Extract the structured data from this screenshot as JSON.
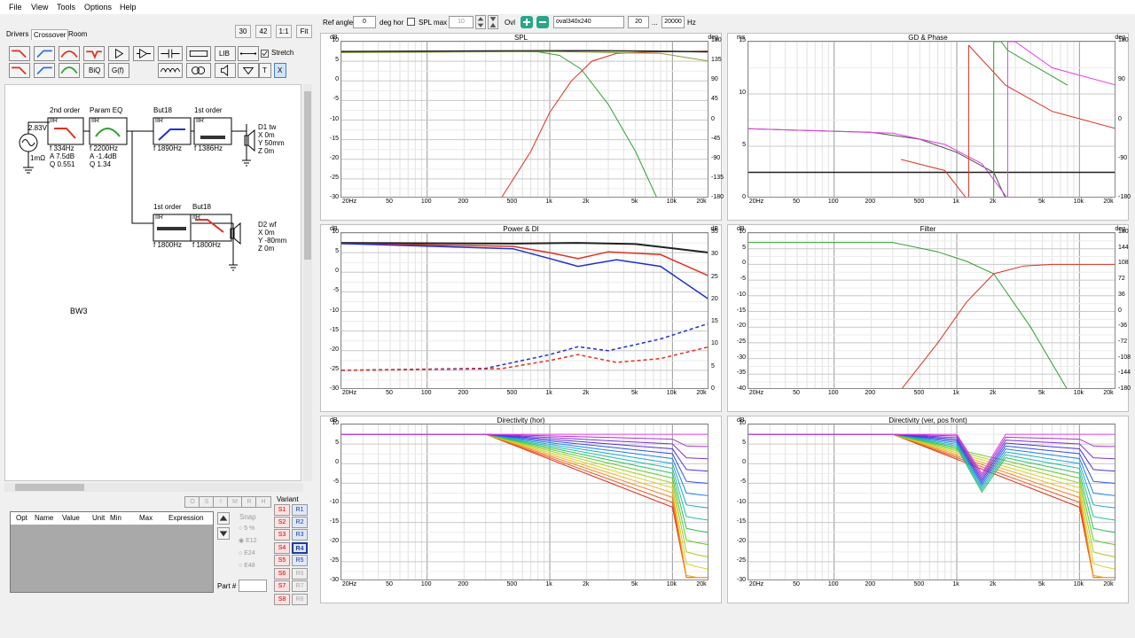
{
  "menu": [
    "File",
    "View",
    "Tools",
    "Options",
    "Help"
  ],
  "tabs": [
    "Drivers",
    "Crossover",
    "Room"
  ],
  "topbtns": [
    "30",
    "42",
    "1:1",
    "Fit"
  ],
  "toolbar": {
    "lib": "LIB",
    "biq": "BiQ",
    "gf": "G(f)",
    "t": "T",
    "x": "X",
    "stretch": "Stretch"
  },
  "schematic": {
    "source_v": "2.83V",
    "source_r": "1mΩ",
    "project": "BW3",
    "blocks": [
      {
        "title": "2nd order",
        "kind": "IIR",
        "params": [
          "f   334Hz",
          "A  7.5dB",
          "Q  0.551"
        ]
      },
      {
        "title": "Param EQ",
        "kind": "IIR",
        "params": [
          "f   2200Hz",
          "A  -1.4dB",
          "Q  1.34"
        ]
      },
      {
        "title": "But18",
        "kind": "IIR",
        "params": [
          "f   1890Hz"
        ]
      },
      {
        "title": "1st order",
        "kind": "IIR",
        "params": [
          "f   1386Hz"
        ]
      },
      {
        "title": "1st order",
        "kind": "IIR",
        "params": [
          "f   1800Hz"
        ]
      },
      {
        "title": "But18",
        "kind": "IIR",
        "params": [
          "f   1800Hz"
        ]
      }
    ],
    "drivers": [
      {
        "name": "D1 tw",
        "x": "X  0m",
        "y": "Y  50mm",
        "z": "Z  0m"
      },
      {
        "name": "D2 wf",
        "x": "X  0m",
        "y": "Y  -80mm",
        "z": "Z  0m"
      }
    ]
  },
  "params": {
    "headers": [
      "Opt",
      "Name",
      "Value",
      "Unit",
      "Min",
      "Max",
      "Expression"
    ],
    "letters": [
      "O",
      "S",
      "I",
      "M",
      "R",
      "H"
    ],
    "snap": "Snap",
    "snap_opts": [
      "5 %",
      "E12",
      "E24",
      "E48"
    ],
    "part": "Part #"
  },
  "variants": {
    "label": "Variant",
    "s": [
      "S1",
      "S2",
      "S3",
      "S4",
      "S5",
      "S6",
      "S7",
      "S8"
    ],
    "r": [
      "R1",
      "R2",
      "R3",
      "R4",
      "R5",
      "R6",
      "R7",
      "R8"
    ]
  },
  "topbar": {
    "ref_angle_label": "Ref angle",
    "ref_angle": "0",
    "deg_hor": "deg hor",
    "spl_max": "SPL max",
    "spl_max_val": "10",
    "ovl": "Ovl",
    "ovl_name": "oval340x240",
    "fmin": "20",
    "dots": "...",
    "fmax": "20000",
    "hz": "Hz"
  },
  "x_ticks": [
    "20Hz",
    "50",
    "100",
    "200",
    "500",
    "1k",
    "2k",
    "5k",
    "10k",
    "20k"
  ],
  "charts": {
    "spl": {
      "title": "SPL",
      "lunit": "dB",
      "runit": "deg",
      "left": [
        "10",
        "5",
        "0",
        "-5",
        "-10",
        "-15",
        "-20",
        "-25",
        "-30"
      ],
      "right": [
        "180",
        "135",
        "90",
        "45",
        "0",
        "-45",
        "-90",
        "-135",
        "-180"
      ]
    },
    "gd": {
      "title": "GD & Phase",
      "lunit": "ms",
      "runit": "deg",
      "left": [
        "15",
        "10",
        "5",
        "0"
      ],
      "right": [
        "180",
        "90",
        "0",
        "-90",
        "-180"
      ]
    },
    "power": {
      "title": "Power & DI",
      "lunit": "dB",
      "runit": "dB",
      "left": [
        "10",
        "5",
        "0",
        "-5",
        "-10",
        "-15",
        "-20",
        "-25",
        "-30"
      ],
      "right": [
        "35",
        "30",
        "25",
        "20",
        "15",
        "10",
        "5",
        "0"
      ]
    },
    "filter": {
      "title": "Filter",
      "lunit": "dB",
      "runit": "deg",
      "left": [
        "10",
        "5",
        "0",
        "-5",
        "-10",
        "-15",
        "-20",
        "-25",
        "-30",
        "-35",
        "-40"
      ],
      "right": [
        "180",
        "144",
        "108",
        "72",
        "36",
        "0",
        "-36",
        "-72",
        "-108",
        "-144",
        "-180"
      ]
    },
    "dirh": {
      "title": "Directivity (hor)",
      "lunit": "dB",
      "left": [
        "10",
        "5",
        "0",
        "-5",
        "-10",
        "-15",
        "-20",
        "-25",
        "-30"
      ]
    },
    "dirv": {
      "title": "Directivity (ver, pos front)",
      "lunit": "dB",
      "left": [
        "10",
        "5",
        "0",
        "-5",
        "-10",
        "-15",
        "-20",
        "-25",
        "-30"
      ]
    }
  },
  "colors": {
    "accent": "#3574d0",
    "red": "#e03020",
    "green": "#30a030",
    "black": "#202020",
    "magenta": "#e040e0"
  }
}
